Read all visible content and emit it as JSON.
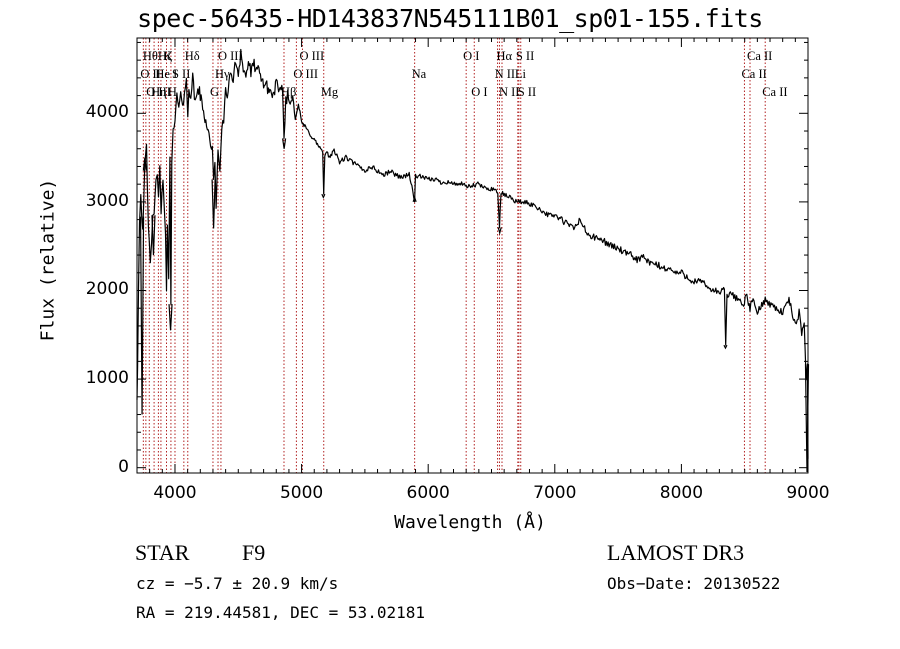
{
  "chart_data": {
    "type": "line",
    "title": "spec-56435-HD143837N545111B01_sp01-155.fits",
    "xlabel": "Wavelength (Å)",
    "ylabel": "Flux (relative)",
    "xlim": [
      3700,
      9000
    ],
    "ylim": [
      -60,
      4850
    ],
    "xticks": [
      4000,
      5000,
      6000,
      7000,
      8000,
      9000
    ],
    "xtick_labels": [
      "4000",
      "5000",
      "6000",
      "7000",
      "8000",
      "9000"
    ],
    "yticks": [
      0,
      1000,
      2000,
      3000,
      4000
    ],
    "ytick_labels": [
      "0",
      "1000",
      "2000",
      "3000",
      "4000"
    ],
    "series": [
      {
        "color": "#000000",
        "x": [
          3700,
          3705,
          3712,
          3720,
          3730,
          3745,
          3760,
          3775,
          3790,
          3805,
          3815,
          3825,
          3835,
          3850,
          3860,
          3870,
          3880,
          3890,
          3905,
          3915,
          3925,
          3933,
          3940,
          3950,
          3960,
          3968,
          3975,
          3985,
          4000,
          4015,
          4030,
          4045,
          4060,
          4075,
          4090,
          4101,
          4110,
          4125,
          4140,
          4160,
          4180,
          4200,
          4225,
          4250,
          4275,
          4295,
          4305,
          4315,
          4325,
          4340,
          4355,
          4370,
          4385,
          4400,
          4420,
          4440,
          4460,
          4480,
          4500,
          4520,
          4540,
          4560,
          4580,
          4600,
          4625,
          4650,
          4675,
          4700,
          4725,
          4750,
          4775,
          4800,
          4825,
          4850,
          4861,
          4875,
          4890,
          4910,
          4930,
          4950,
          4975,
          5000,
          5025,
          5050,
          5075,
          5100,
          5125,
          5150,
          5167,
          5175,
          5183,
          5200,
          5225,
          5250,
          5300,
          5350,
          5400,
          5450,
          5500,
          5550,
          5600,
          5650,
          5700,
          5750,
          5800,
          5850,
          5893,
          5900,
          5950,
          6000,
          6050,
          6100,
          6150,
          6200,
          6250,
          6300,
          6350,
          6400,
          6450,
          6500,
          6550,
          6563,
          6575,
          6600,
          6650,
          6700,
          6750,
          6800,
          6850,
          6900,
          6950,
          7000,
          7050,
          7100,
          7150,
          7200,
          7250,
          7300,
          7350,
          7400,
          7450,
          7500,
          7550,
          7600,
          7650,
          7700,
          7750,
          7800,
          7850,
          7900,
          7950,
          8000,
          8050,
          8100,
          8150,
          8200,
          8250,
          8300,
          8340,
          8350,
          8360,
          8400,
          8450,
          8498,
          8510,
          8542,
          8560,
          8600,
          8662,
          8700,
          8750,
          8800,
          8850,
          8900,
          8930,
          8950,
          8970,
          8985,
          8995,
          9000
        ],
        "y": [
          800,
          1200,
          2000,
          2800,
          3100,
          2700,
          3300,
          3600,
          2700,
          2300,
          2600,
          2900,
          2800,
          3200,
          3300,
          3100,
          3400,
          2900,
          3200,
          3000,
          2600,
          2000,
          2800,
          2200,
          3500,
          1800,
          3400,
          3800,
          3900,
          4200,
          4000,
          4300,
          4100,
          4200,
          4350,
          4000,
          4300,
          4200,
          4400,
          4100,
          4300,
          4200,
          4000,
          3900,
          3700,
          3600,
          3200,
          3400,
          2900,
          3600,
          3400,
          3800,
          3900,
          4300,
          4200,
          4500,
          4350,
          4600,
          4450,
          4700,
          4500,
          4400,
          4600,
          4450,
          4550,
          4500,
          4400,
          4350,
          4300,
          4250,
          4200,
          4350,
          4200,
          4300,
          3700,
          4150,
          4200,
          4100,
          4200,
          3950,
          4100,
          3900,
          3850,
          3800,
          3750,
          3700,
          3650,
          3600,
          3550,
          3100,
          3500,
          3550,
          3500,
          3600,
          3450,
          3500,
          3450,
          3400,
          3350,
          3400,
          3350,
          3300,
          3350,
          3300,
          3280,
          3320,
          3000,
          3300,
          3280,
          3250,
          3260,
          3220,
          3230,
          3200,
          3210,
          3170,
          3180,
          3200,
          3150,
          3150,
          3120,
          2700,
          3100,
          3080,
          3050,
          3000,
          3000,
          2980,
          2950,
          2900,
          2850,
          2850,
          2800,
          2750,
          2700,
          2800,
          2650,
          2600,
          2580,
          2550,
          2500,
          2480,
          2420,
          2400,
          2350,
          2380,
          2300,
          2300,
          2250,
          2250,
          2200,
          2200,
          2150,
          2100,
          2100,
          2050,
          2000,
          1980,
          2000,
          1400,
          1950,
          1950,
          1900,
          1850,
          1950,
          1800,
          1900,
          1750,
          1900,
          1850,
          1800,
          1750,
          1900,
          1600,
          1750,
          1500,
          1650,
          1000,
          1200,
          100
        ],
        "spikes": [
          {
            "x": 3740,
            "y": 600
          },
          {
            "x": 3762,
            "y": 3500
          },
          {
            "x": 3830,
            "y": 2400
          },
          {
            "x": 3965,
            "y": 1550
          },
          {
            "x": 4305,
            "y": 2700
          },
          {
            "x": 4862,
            "y": 3600
          },
          {
            "x": 5172,
            "y": 3050
          },
          {
            "x": 5893,
            "y": 3050
          },
          {
            "x": 6565,
            "y": 2650
          },
          {
            "x": 8348,
            "y": 1350
          },
          {
            "x": 8992,
            "y": -50
          }
        ]
      }
    ],
    "lines": {
      "color": "#b22222",
      "items": [
        {
          "x": 3750,
          "label": "O II",
          "row": 1
        },
        {
          "x": 3770,
          "label": "Hθ",
          "row": 0
        },
        {
          "x": 3797,
          "label": "O III",
          "row": 2
        },
        {
          "x": 3835,
          "label": "Hη",
          "row": 2
        },
        {
          "x": 3869,
          "label": "He I",
          "row": 1
        },
        {
          "x": 3889,
          "label": "Hζ",
          "row": 0
        },
        {
          "x": 3933,
          "label": "K",
          "row": 0
        },
        {
          "x": 3968,
          "label": "H",
          "row": 2
        },
        {
          "x": 4000,
          "label": "S II",
          "row": 1
        },
        {
          "x": 4070,
          "label": "",
          "row": 0
        },
        {
          "x": 4101,
          "label": "Hδ",
          "row": 0
        },
        {
          "x": 4300,
          "label": "G",
          "row": 2
        },
        {
          "x": 4340,
          "label": "Hγ",
          "row": 1
        },
        {
          "x": 4363,
          "label": "O III",
          "row": 0
        },
        {
          "x": 4861,
          "label": "Hβ",
          "row": 2
        },
        {
          "x": 4959,
          "label": "O III",
          "row": 1
        },
        {
          "x": 5007,
          "label": "O III",
          "row": 0
        },
        {
          "x": 5175,
          "label": "Mg",
          "row": 2
        },
        {
          "x": 5893,
          "label": "Na",
          "row": 1
        },
        {
          "x": 6300,
          "label": "O I",
          "row": 0
        },
        {
          "x": 6364,
          "label": "O I",
          "row": 2
        },
        {
          "x": 6548,
          "label": "N II",
          "row": 1
        },
        {
          "x": 6563,
          "label": "Hα",
          "row": 0
        },
        {
          "x": 6583,
          "label": "N II",
          "row": 2
        },
        {
          "x": 6708,
          "label": "Li",
          "row": 1
        },
        {
          "x": 6716,
          "label": "S II",
          "row": 0
        },
        {
          "x": 6731,
          "label": "S II",
          "row": 2
        },
        {
          "x": 8498,
          "label": "Ca II",
          "row": 1
        },
        {
          "x": 8542,
          "label": "Ca II",
          "row": 0
        },
        {
          "x": 8662,
          "label": "Ca II",
          "row": 2
        }
      ]
    }
  },
  "info": {
    "obj_class": "STAR",
    "subclass": "F9",
    "survey": "LAMOST DR3",
    "cz": "cz = −5.7 ± 20.9 km/s",
    "obs_date": "Obs−Date: 20130522",
    "radec": "RA = 219.44581, DEC =  53.02181"
  }
}
